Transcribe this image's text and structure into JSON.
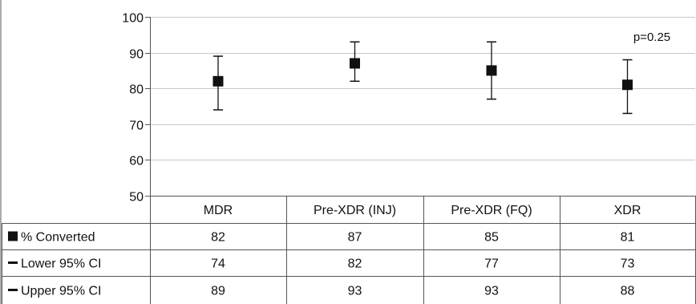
{
  "chart_data": {
    "type": "scatter",
    "categories": [
      "MDR",
      "Pre-XDR (INJ)",
      "Pre-XDR (FQ)",
      "XDR"
    ],
    "ylim": [
      50,
      100
    ],
    "yticks": [
      "50",
      "60",
      "70",
      "80",
      "90",
      "100"
    ],
    "grid": true,
    "annotation": "p=0.25",
    "series": [
      {
        "name": "% Converted",
        "marker": "square",
        "values": [
          82,
          87,
          85,
          81
        ]
      },
      {
        "name": "Lower 95% CI",
        "marker": "dash",
        "values": [
          74,
          82,
          77,
          73
        ]
      },
      {
        "name": "Upper 95% CI",
        "marker": "dash",
        "values": [
          89,
          93,
          93,
          88
        ]
      }
    ]
  },
  "table": {
    "rows": [
      {
        "label": "% Converted",
        "values": [
          "82",
          "87",
          "85",
          "81"
        ]
      },
      {
        "label": "Lower 95% CI",
        "values": [
          "74",
          "82",
          "77",
          "73"
        ]
      },
      {
        "label": "Upper 95% CI",
        "values": [
          "89",
          "93",
          "93",
          "88"
        ]
      }
    ]
  },
  "colors": {
    "marker": "#111111",
    "grid": "#c8c8c8",
    "border": "#555555"
  }
}
